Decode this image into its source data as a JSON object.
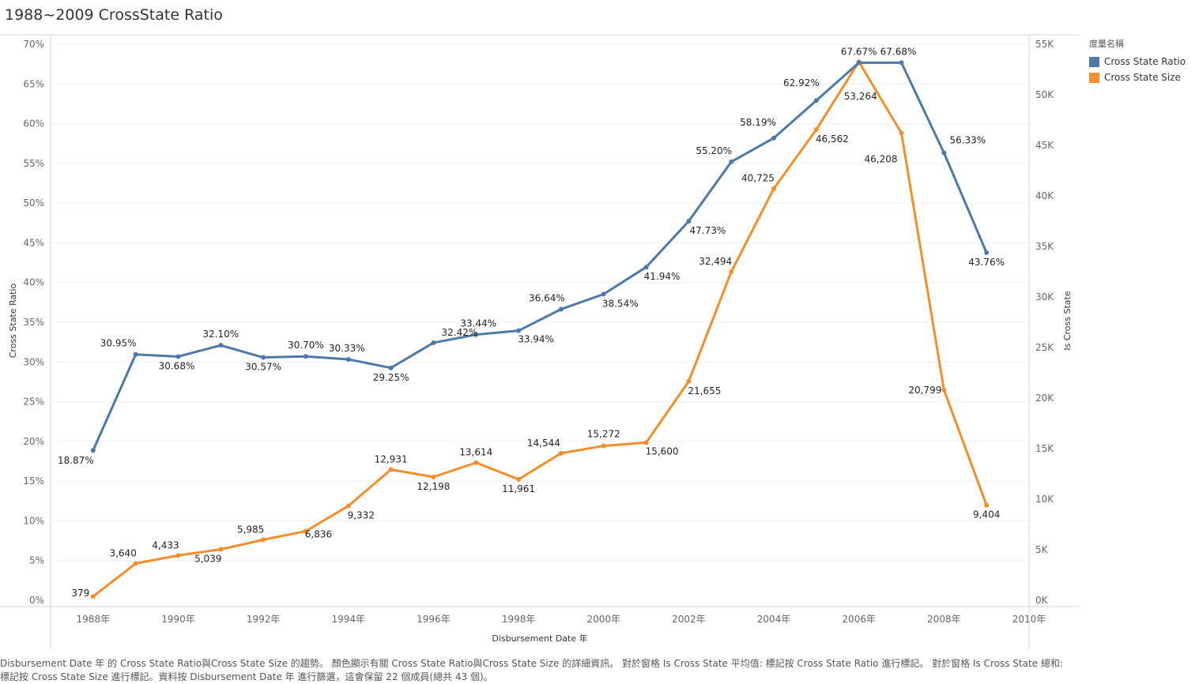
{
  "title": "1988~2009 CrossState Ratio",
  "legend": {
    "title": "度量名稱",
    "items": [
      {
        "label": "Cross State Ratio",
        "color": "#4e79a7"
      },
      {
        "label": "Cross State Size",
        "color": "#f28e2b"
      }
    ]
  },
  "caption": {
    "line1": "Disbursement Date 年 的 Cross State Ratio與Cross State Size 的趨勢。 顏色顯示有關 Cross State Ratio與Cross State Size 的詳細資訊。 對於窗格 Is Cross State 平均值: 標記按 Cross State Ratio 進行標記。 對於窗格 Is Cross State 總和:",
    "line2": "標記按 Cross State Size 進行標記。資料按 Disbursement Date 年 進行篩選，這會保留 22 個成員(總共 43 個)。"
  },
  "chart_data": {
    "type": "line",
    "xlabel": "Disbursement Date 年",
    "ylabel_left": "Cross State Ratio",
    "ylabel_right": "Is Cross State",
    "xlim": [
      1987,
      2010
    ],
    "x_ticks": [
      1988,
      1990,
      1992,
      1994,
      1996,
      1998,
      2000,
      2002,
      2004,
      2006,
      2008,
      2010
    ],
    "x_tick_labels": [
      "1988年",
      "1990年",
      "1992年",
      "1994年",
      "1996年",
      "1998年",
      "2000年",
      "2002年",
      "2004年",
      "2006年",
      "2008年",
      "2010年"
    ],
    "ylim_left": [
      0,
      0.7
    ],
    "y_ticks_left": [
      "0%",
      "5%",
      "10%",
      "15%",
      "20%",
      "25%",
      "30%",
      "35%",
      "40%",
      "45%",
      "50%",
      "55%",
      "60%",
      "65%",
      "70%"
    ],
    "ylim_right": [
      0,
      55000
    ],
    "y_ticks_right": [
      "0K",
      "5K",
      "10K",
      "15K",
      "20K",
      "25K",
      "30K",
      "35K",
      "40K",
      "45K",
      "50K",
      "55K"
    ],
    "x": [
      1988,
      1989,
      1990,
      1991,
      1992,
      1993,
      1994,
      1995,
      1996,
      1997,
      1998,
      1999,
      2000,
      2001,
      2002,
      2003,
      2004,
      2005,
      2006,
      2007,
      2008,
      2009
    ],
    "series": [
      {
        "name": "Cross State Ratio",
        "axis": "left",
        "color": "#4e79a7",
        "values": [
          0.1887,
          0.3095,
          0.3068,
          0.321,
          0.3057,
          0.307,
          0.3033,
          0.2925,
          0.3242,
          0.3344,
          0.3394,
          0.3664,
          0.3854,
          0.4194,
          0.4773,
          0.552,
          0.5819,
          0.6292,
          0.6767,
          0.6768,
          0.5633,
          0.4376
        ],
        "labels": [
          "18.87%",
          "30.95%",
          "30.68%",
          "32.10%",
          "30.57%",
          "30.70%",
          "30.33%",
          "29.25%",
          "32.42%",
          "33.44%",
          "33.94%",
          "36.64%",
          "38.54%",
          "41.94%",
          "47.73%",
          "55.20%",
          "58.19%",
          "62.92%",
          "67.67%",
          "67.68%",
          "56.33%",
          "43.76%"
        ]
      },
      {
        "name": "Cross State Size",
        "axis": "right",
        "color": "#f28e2b",
        "values": [
          379,
          3640,
          4433,
          5039,
          5985,
          6836,
          9332,
          12931,
          12198,
          13614,
          11961,
          14544,
          15272,
          15600,
          21655,
          32494,
          40725,
          46562,
          53264,
          46208,
          20799,
          9404
        ],
        "labels": [
          "379",
          "3,640",
          "4,433",
          "5,039",
          "5,985",
          "6,836",
          "9,332",
          "12,931",
          "12,198",
          "13,614",
          "11,961",
          "14,544",
          "15,272",
          "15,600",
          "21,655",
          "32,494",
          "40,725",
          "46,562",
          "53,264",
          "46,208",
          "20,799",
          "9,404"
        ]
      }
    ]
  }
}
